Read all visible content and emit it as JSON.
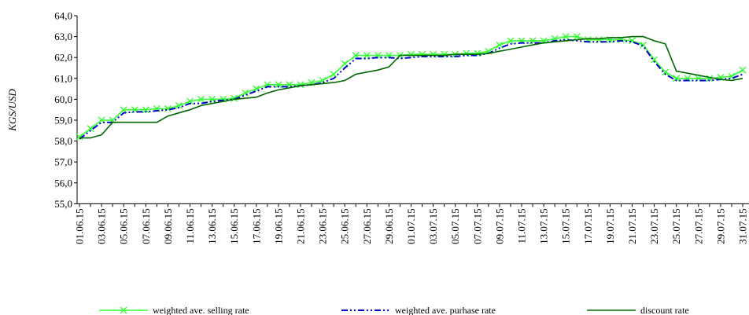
{
  "chart_data": {
    "type": "line",
    "y_label": "KGS/USD",
    "categories": [
      "01.06.15",
      null,
      "03.06.15",
      null,
      "05.06.15",
      null,
      "07.06.15",
      null,
      "09.06.15",
      null,
      "11.06.15",
      null,
      "13.06.15",
      null,
      "15.06.15",
      null,
      "17.06.15",
      null,
      "19.06.15",
      null,
      "21.06.15",
      null,
      "23.06.15",
      null,
      "25.06.15",
      null,
      "27.06.15",
      null,
      "29.06.15",
      null,
      "01.07.15",
      null,
      "03.07.15",
      null,
      "05.07.15",
      null,
      "07.07.15",
      null,
      "09.07.15",
      null,
      "11.07.15",
      null,
      "13.07.15",
      null,
      "15.07.15",
      null,
      "17.07.15",
      null,
      "19.07.15",
      null,
      "21.07.15",
      null,
      "23.07.15",
      null,
      "25.07.15",
      null,
      "27.07.15",
      null,
      "29.07.15",
      null,
      "31.07.15"
    ],
    "series": [
      {
        "name": "weighted ave. selling rate",
        "color": "#33ff33",
        "marker": "x",
        "values": [
          58.2,
          58.6,
          59.0,
          59.0,
          59.5,
          59.5,
          59.5,
          59.55,
          59.55,
          59.7,
          59.9,
          60.0,
          60.0,
          60.0,
          60.05,
          60.3,
          60.5,
          60.7,
          60.7,
          60.7,
          60.7,
          60.8,
          60.9,
          61.2,
          61.7,
          62.1,
          62.1,
          62.1,
          62.1,
          62.1,
          62.15,
          62.15,
          62.15,
          62.15,
          62.15,
          62.2,
          62.2,
          62.3,
          62.6,
          62.8,
          62.8,
          62.8,
          62.8,
          62.9,
          63.0,
          63.0,
          62.85,
          62.85,
          62.85,
          62.85,
          62.8,
          62.6,
          61.9,
          61.3,
          61.0,
          61.0,
          61.0,
          61.0,
          61.05,
          61.1,
          61.4
        ]
      },
      {
        "name": "weighted ave. purhase rate",
        "color": "#0000cc",
        "dash": "dash-dot-dot",
        "values": [
          58.1,
          58.5,
          58.9,
          58.9,
          59.35,
          59.4,
          59.4,
          59.45,
          59.5,
          59.6,
          59.8,
          59.8,
          59.9,
          59.95,
          60.0,
          60.2,
          60.4,
          60.6,
          60.6,
          60.6,
          60.65,
          60.7,
          60.8,
          61.0,
          61.5,
          61.95,
          61.95,
          62.0,
          62.0,
          61.95,
          62.0,
          62.05,
          62.05,
          62.05,
          62.05,
          62.1,
          62.1,
          62.2,
          62.45,
          62.65,
          62.7,
          62.7,
          62.7,
          62.8,
          62.85,
          62.8,
          62.75,
          62.75,
          62.75,
          62.8,
          62.75,
          62.55,
          61.8,
          61.2,
          60.9,
          60.9,
          60.9,
          60.9,
          60.95,
          61.0,
          61.2
        ]
      },
      {
        "name": "discount rate",
        "color": "#006600",
        "values": [
          58.15,
          58.15,
          58.3,
          58.9,
          58.9,
          58.9,
          58.9,
          58.9,
          59.2,
          59.35,
          59.5,
          59.7,
          59.8,
          59.9,
          60.0,
          60.05,
          60.1,
          60.3,
          60.45,
          60.55,
          60.65,
          60.7,
          60.75,
          60.8,
          60.9,
          61.2,
          61.3,
          61.4,
          61.55,
          62.1,
          62.1,
          62.1,
          62.1,
          62.1,
          62.15,
          62.15,
          62.15,
          62.2,
          62.3,
          62.4,
          62.5,
          62.6,
          62.7,
          62.75,
          62.8,
          62.85,
          62.9,
          62.9,
          62.95,
          62.95,
          63.0,
          63.0,
          62.8,
          62.65,
          61.35,
          61.25,
          61.15,
          61.05,
          60.95,
          60.9,
          61.0
        ]
      }
    ],
    "ylim": [
      55,
      64
    ],
    "yticks": [
      {
        "value": 55,
        "label": "55,0"
      },
      {
        "value": 56,
        "label": "56,0"
      },
      {
        "value": 57,
        "label": "57,0"
      },
      {
        "value": 58,
        "label": "58,0"
      },
      {
        "value": 59,
        "label": "59,0"
      },
      {
        "value": 60,
        "label": "60,0"
      },
      {
        "value": 61,
        "label": "61,0"
      },
      {
        "value": 62,
        "label": "62,0"
      },
      {
        "value": 63,
        "label": "63,0"
      },
      {
        "value": 64,
        "label": "64,0"
      }
    ],
    "legend": "bottom"
  }
}
